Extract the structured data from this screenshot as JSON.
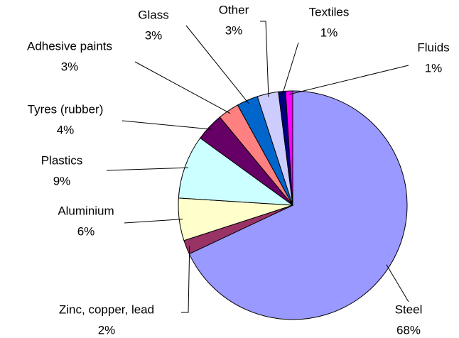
{
  "chart_data": {
    "type": "pie",
    "categories": [
      "Steel",
      "Zinc, copper, lead",
      "Aluminium",
      "Plastics",
      "Tyres (rubber)",
      "Adhesive paints",
      "Glass",
      "Other",
      "Textiles",
      "Fluids"
    ],
    "values": [
      68,
      2,
      6,
      9,
      4,
      3,
      3,
      3,
      1,
      1
    ],
    "value_labels": [
      "68%",
      "2%",
      "6%",
      "9%",
      "4%",
      "3%",
      "3%",
      "3%",
      "1%",
      "1%"
    ],
    "colors": [
      "#9999ff",
      "#993366",
      "#ffffcc",
      "#ccffff",
      "#660066",
      "#ff8080",
      "#0066cc",
      "#ccccff",
      "#000080",
      "#ff00ff"
    ]
  }
}
